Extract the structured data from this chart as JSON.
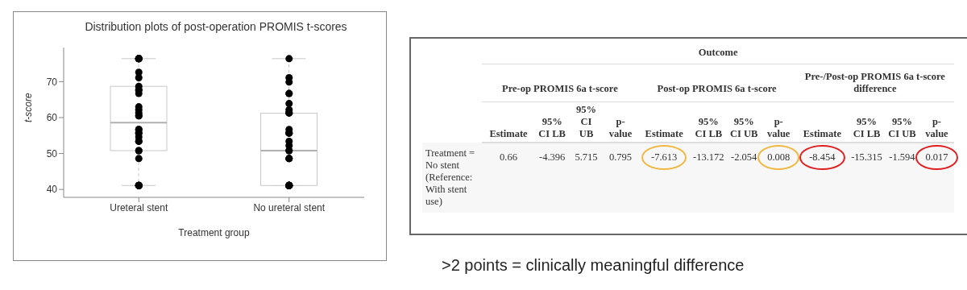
{
  "chart_data": [
    {
      "type": "box",
      "title": "Distribution plots of post-operation PROMIS t-scores",
      "xlabel": "Treatment group",
      "ylabel": "t-score",
      "categories": [
        "Ureteral stent",
        "No ureteral stent"
      ],
      "ylim": [
        37.8,
        79.5
      ],
      "yticks": [
        40,
        50,
        60,
        70
      ],
      "series": [
        {
          "type": "box",
          "color": "#c8c8c8",
          "boxes": [
            {
              "low": 41.1,
              "q1": 50.8,
              "median": 58.6,
              "q3": 68.7,
              "high": 76.4
            },
            {
              "low": 41.1,
              "q1": 41.1,
              "median": 50.8,
              "q3": 61.2,
              "high": 76.4
            }
          ]
        },
        {
          "type": "scatter",
          "color": "#000000",
          "x": [
            "Ureteral stent",
            "Ureteral stent",
            "Ureteral stent",
            "Ureteral stent",
            "Ureteral stent",
            "Ureteral stent",
            "Ureteral stent",
            "Ureteral stent",
            "Ureteral stent",
            "Ureteral stent",
            "Ureteral stent",
            "Ureteral stent",
            "Ureteral stent",
            "Ureteral stent",
            "Ureteral stent",
            "Ureteral stent",
            "Ureteral stent",
            "Ureteral stent",
            "Ureteral stent",
            "Ureteral stent",
            "Ureteral stent",
            "Ureteral stent",
            "Ureteral stent",
            "Ureteral stent",
            "Ureteral stent",
            "Ureteral stent",
            "Ureteral stent",
            "Ureteral stent",
            "Ureteral stent",
            "Ureteral stent",
            "Ureteral stent",
            "Ureteral stent",
            "Ureteral stent",
            "Ureteral stent",
            "Ureteral stent",
            "No ureteral stent",
            "No ureteral stent",
            "No ureteral stent",
            "No ureteral stent",
            "No ureteral stent",
            "No ureteral stent",
            "No ureteral stent",
            "No ureteral stent",
            "No ureteral stent",
            "No ureteral stent",
            "No ureteral stent",
            "No ureteral stent",
            "No ureteral stent",
            "No ureteral stent",
            "No ureteral stent",
            "No ureteral stent",
            "No ureteral stent",
            "No ureteral stent",
            "No ureteral stent",
            "No ureteral stent",
            "No ureteral stent",
            "No ureteral stent",
            "No ureteral stent",
            "No ureteral stent",
            "No ureteral stent",
            "No ureteral stent",
            "No ureteral stent",
            "No ureteral stent",
            "No ureteral stent",
            "No ureteral stent",
            "No ureteral stent",
            "No ureteral stent",
            "No ureteral stent",
            "No ureteral stent"
          ],
          "values": [
            76.4,
            76.4,
            76.4,
            76.4,
            76.4,
            76.4,
            76.4,
            72.6,
            71.1,
            68.7,
            67.7,
            67.7,
            66.7,
            63.0,
            62.2,
            61.3,
            60.5,
            60.5,
            56.7,
            56.7,
            55.7,
            55.7,
            54.6,
            53.4,
            53.4,
            50.8,
            50.8,
            48.6,
            41.1,
            41.1,
            41.1,
            41.1,
            41.1,
            41.1,
            41.1,
            76.4,
            71.1,
            69.9,
            66.7,
            66.7,
            63.9,
            62.2,
            61.3,
            61.3,
            61.3,
            56.7,
            55.7,
            55.7,
            55.7,
            53.4,
            52.2,
            50.8,
            50.8,
            48.6,
            48.6,
            48.6,
            41.1,
            41.1,
            41.1,
            41.1,
            41.1,
            41.1,
            41.1,
            41.1,
            41.1,
            41.1,
            41.1,
            41.1,
            41.1
          ]
        }
      ]
    },
    {
      "type": "other",
      "title": "Outcome",
      "annotations": [
        "Pre-op PROMIS 6a t-score",
        "Post-op PROMIS 6a t-score",
        "Pre-/Post-op PROMIS 6a t-score difference",
        ">2 points = clinically meaningful difference"
      ],
      "categories": [
        "Estimate",
        "95% CI LB",
        "95% CI UB",
        "p-value",
        "Estimate",
        "95% CI LB",
        "95% CI UB",
        "p-value",
        "Estimate",
        "95% CI LB",
        "95% CI UB",
        "p-value"
      ],
      "y_categories": [
        "Treatment = No stent (Reference: With stent use)"
      ],
      "cell_labels": [
        [
          "0.66",
          "-4.396",
          "5.715",
          "0.795",
          "-7.613",
          "-13.172",
          "-2.054",
          "0.008",
          "-8.454",
          "-15.315",
          "-1.594",
          "0.017"
        ]
      ]
    }
  ]
}
